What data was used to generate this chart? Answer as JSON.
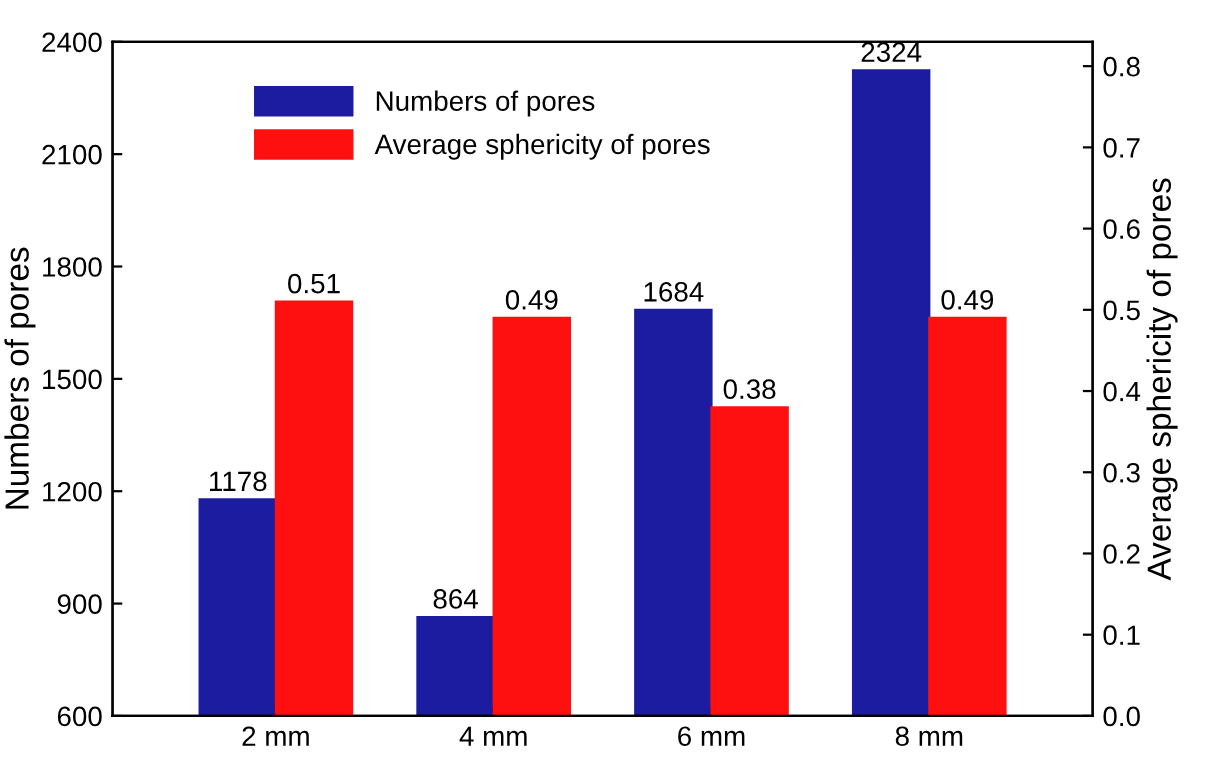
{
  "chart_data": {
    "type": "bar",
    "categories": [
      "2 mm",
      "4 mm",
      "6 mm",
      "8 mm"
    ],
    "ylabel": "Numbers of pores",
    "y2label": "Average sphericity of pores",
    "series": [
      {
        "name": "Numbers of pores",
        "color": "#1c1ca0",
        "values": [
          1178,
          864,
          1684,
          2324
        ]
      },
      {
        "name": "Average sphericity of pores",
        "color": "#ff1010",
        "axis": "y2",
        "values": [
          0.51,
          0.49,
          0.38,
          0.49
        ]
      }
    ],
    "ylim": [
      600,
      2400
    ],
    "yticks": [
      600,
      900,
      1200,
      1500,
      1800,
      2100,
      2400
    ],
    "y2lim": [
      0,
      0.83
    ],
    "y2ticks": [
      {
        "value": 0,
        "label": "0.0"
      },
      0.1,
      0.2,
      0.3,
      0.4,
      0.5,
      0.6,
      0.7,
      0.8
    ],
    "data_labels": true,
    "legend": "top left",
    "grid": false
  }
}
